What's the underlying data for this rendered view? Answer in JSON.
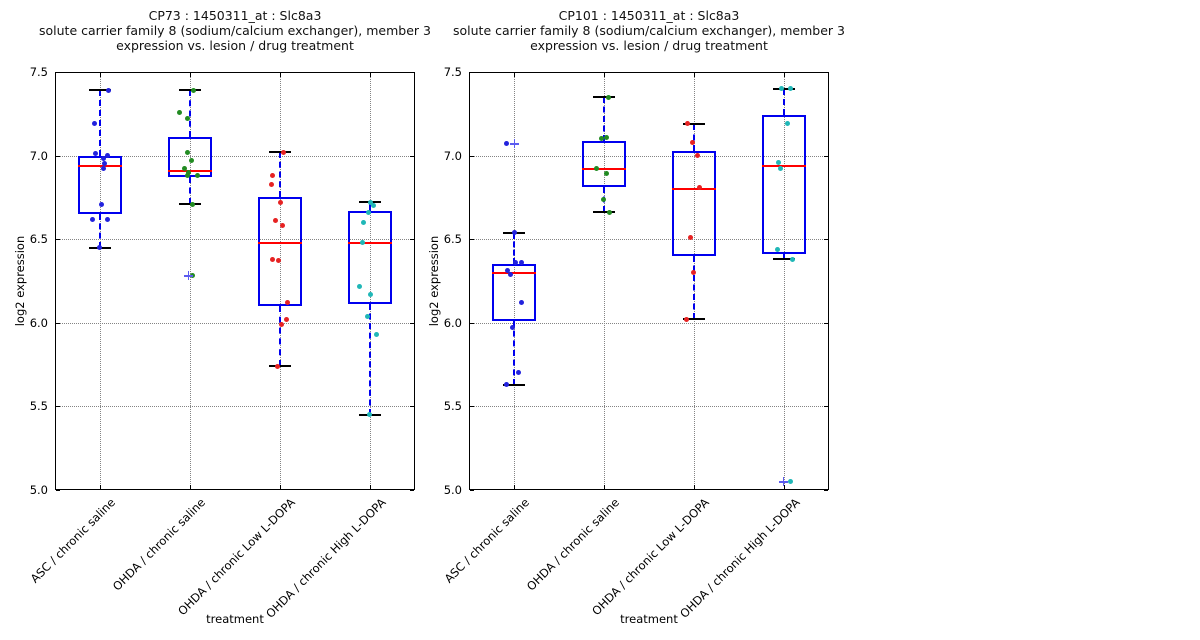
{
  "colors": {
    "box_edge": "#0000ee",
    "median": "#ff0000",
    "whisker": "#0000ee",
    "cap": "#000000",
    "flier": "#5c5cf0",
    "grid": "#848484",
    "axis": "#000000",
    "background": "#ffffff"
  },
  "chart_data": {
    "type": "box",
    "grid": "dotted",
    "legend": "none",
    "x_axis": {
      "label": "treatment",
      "categories": [
        "ASC / chronic saline",
        "OHDA / chronic saline",
        "OHDA / chronic Low L-DOPA",
        "OHDA / chronic High L-DOPA"
      ]
    },
    "y_axis": {
      "label": "log2 expression",
      "min": 5.0,
      "max": 7.5,
      "ticks": [
        5.0,
        5.5,
        6.0,
        6.5,
        7.0,
        7.5
      ]
    },
    "plots": [
      {
        "name": "CP73",
        "title": {
          "line1": "CP73 : 1450311_at : Slc8a3",
          "line2": "solute carrier family 8 (sodium/calcium exchanger), member 3",
          "line3": "expression vs. lesion / drug treatment"
        },
        "groups": [
          {
            "category": "ASC / chronic saline",
            "point_color": "#2222dd",
            "whisker_low": 6.45,
            "q1": 6.65,
            "median": 6.94,
            "q3": 7.0,
            "whisker_high": 7.39,
            "points": [
              [
                7.39,
                8
              ],
              [
                7.19,
                -6
              ],
              [
                7.01,
                -5
              ],
              [
                7.0,
                7
              ],
              [
                6.98,
                3
              ],
              [
                6.95,
                4
              ],
              [
                6.92,
                3
              ],
              [
                6.71,
                1
              ],
              [
                6.62,
                -8
              ],
              [
                6.62,
                7
              ],
              [
                6.45,
                -1
              ]
            ],
            "fliers": []
          },
          {
            "category": "OHDA / chronic saline",
            "point_color": "#228b22",
            "whisker_low": 6.71,
            "q1": 6.87,
            "median": 6.91,
            "q3": 7.11,
            "whisker_high": 7.39,
            "points": [
              [
                7.39,
                3
              ],
              [
                7.26,
                -11
              ],
              [
                7.22,
                -3
              ],
              [
                7.02,
                -3
              ],
              [
                6.97,
                1
              ],
              [
                6.92,
                -6
              ],
              [
                6.9,
                -2
              ],
              [
                6.88,
                7
              ],
              [
                6.88,
                -3
              ],
              [
                6.71,
                2
              ],
              [
                6.28,
                2
              ]
            ],
            "fliers": [
              [
                6.28,
                -2
              ]
            ]
          },
          {
            "category": "OHDA / chronic Low L-DOPA",
            "point_color": "#e62222",
            "whisker_low": 5.74,
            "q1": 6.1,
            "median": 6.48,
            "q3": 6.75,
            "whisker_high": 7.02,
            "points": [
              [
                7.02,
                3
              ],
              [
                6.88,
                -8
              ],
              [
                6.83,
                -9
              ],
              [
                6.72,
                0
              ],
              [
                6.61,
                -5
              ],
              [
                6.58,
                2
              ],
              [
                6.38,
                -8
              ],
              [
                6.37,
                -2
              ],
              [
                6.12,
                7
              ],
              [
                6.02,
                6
              ],
              [
                5.99,
                1
              ],
              [
                5.74,
                -3
              ]
            ],
            "fliers": []
          },
          {
            "category": "OHDA / chronic High L-DOPA",
            "point_color": "#20b7b7",
            "whisker_low": 5.45,
            "q1": 6.11,
            "median": 6.48,
            "q3": 6.67,
            "whisker_high": 6.72,
            "points": [
              [
                6.72,
                0
              ],
              [
                6.7,
                3
              ],
              [
                6.66,
                -2
              ],
              [
                6.6,
                -7
              ],
              [
                6.48,
                -8
              ],
              [
                6.22,
                -11
              ],
              [
                6.17,
                0
              ],
              [
                6.04,
                -3
              ],
              [
                5.93,
                6
              ],
              [
                5.45,
                -1
              ]
            ],
            "fliers": []
          }
        ]
      },
      {
        "name": "CP101",
        "title": {
          "line1": "CP101 : 1450311_at : Slc8a3",
          "line2": "solute carrier family 8 (sodium/calcium exchanger), member 3",
          "line3": "expression vs. lesion / drug treatment"
        },
        "groups": [
          {
            "category": "ASC / chronic saline",
            "point_color": "#2222dd",
            "whisker_low": 5.63,
            "q1": 6.01,
            "median": 6.3,
            "q3": 6.35,
            "whisker_high": 6.54,
            "points": [
              [
                7.07,
                -8
              ],
              [
                6.54,
                0
              ],
              [
                6.36,
                1
              ],
              [
                6.36,
                7
              ],
              [
                6.31,
                -7
              ],
              [
                6.29,
                -4
              ],
              [
                6.12,
                7
              ],
              [
                5.97,
                -2
              ],
              [
                5.7,
                4
              ],
              [
                5.63,
                -8
              ]
            ],
            "fliers": [
              [
                7.07,
                0
              ]
            ]
          },
          {
            "category": "OHDA / chronic saline",
            "point_color": "#228b22",
            "whisker_low": 6.66,
            "q1": 6.81,
            "median": 6.92,
            "q3": 7.09,
            "whisker_high": 7.35,
            "points": [
              [
                7.35,
                4
              ],
              [
                7.11,
                2
              ],
              [
                7.1,
                -3
              ],
              [
                6.92,
                -8
              ],
              [
                6.89,
                2
              ],
              [
                6.74,
                -1
              ],
              [
                6.66,
                5
              ]
            ],
            "fliers": []
          },
          {
            "category": "OHDA / chronic Low L-DOPA",
            "point_color": "#e62222",
            "whisker_low": 6.02,
            "q1": 6.4,
            "median": 6.8,
            "q3": 7.03,
            "whisker_high": 7.19,
            "points": [
              [
                7.19,
                -7
              ],
              [
                7.08,
                -2
              ],
              [
                7.0,
                3
              ],
              [
                6.81,
                5
              ],
              [
                6.51,
                -4
              ],
              [
                6.3,
                -1
              ],
              [
                6.02,
                -8
              ]
            ],
            "fliers": []
          },
          {
            "category": "OHDA / chronic High L-DOPA",
            "point_color": "#20b7b7",
            "whisker_low": 6.38,
            "q1": 6.41,
            "median": 6.94,
            "q3": 7.24,
            "whisker_high": 7.4,
            "points": [
              [
                7.4,
                -3
              ],
              [
                7.4,
                6
              ],
              [
                7.19,
                3
              ],
              [
                6.96,
                -6
              ],
              [
                6.92,
                -4
              ],
              [
                6.44,
                -7
              ],
              [
                6.38,
                8
              ],
              [
                5.05,
                6
              ]
            ],
            "fliers": [
              [
                5.05,
                -1
              ]
            ]
          }
        ]
      }
    ]
  }
}
